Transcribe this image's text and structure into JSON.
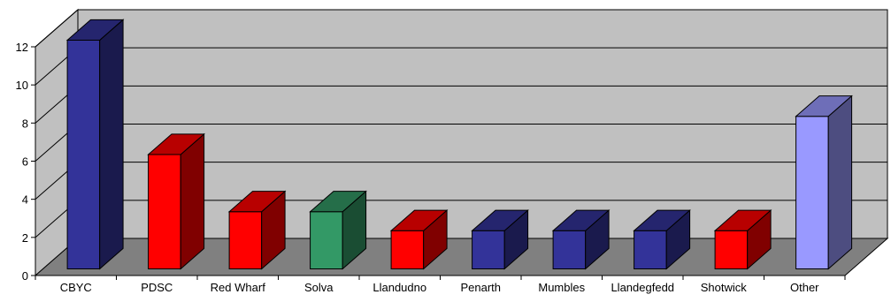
{
  "chart_data": {
    "type": "bar",
    "title": "",
    "xlabel": "",
    "ylabel": "",
    "categories": [
      "CBYC",
      "PDSC",
      "Red Wharf",
      "Solva",
      "Llandudno",
      "Penarth",
      "Mumbles",
      "Llandegfedd",
      "Shotwick",
      "Other"
    ],
    "values": [
      12,
      6,
      3,
      3,
      2,
      2,
      2,
      2,
      2,
      8
    ],
    "bar_colors": [
      "#333399",
      "#ff0000",
      "#ff0000",
      "#339966",
      "#ff0000",
      "#333399",
      "#333399",
      "#333399",
      "#ff0000",
      "#9999ff"
    ],
    "ylim": [
      0,
      12
    ],
    "yticks": [
      "0",
      "2",
      "4",
      "6",
      "8",
      "10",
      "12"
    ],
    "three_d": true,
    "grid": true,
    "legend": "none",
    "colors": {
      "wall": "#c0c0c0",
      "floor": "#808080",
      "gridline": "#000000"
    }
  }
}
